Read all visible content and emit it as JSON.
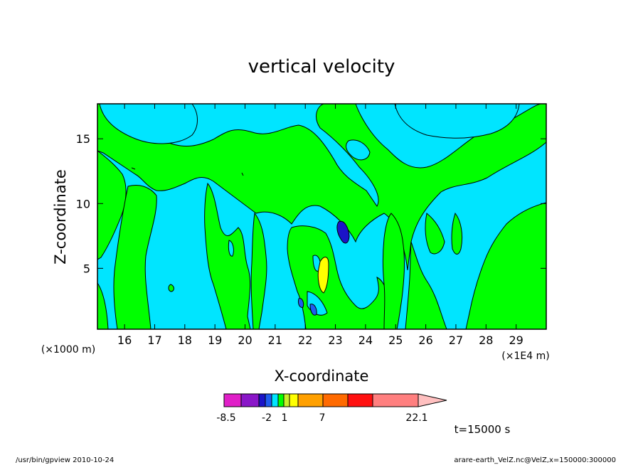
{
  "chart_data": {
    "type": "heatmap",
    "title": "vertical velocity",
    "xlabel": "X-coordinate",
    "ylabel": "Z-coordinate",
    "x_ticks": [
      "16",
      "17",
      "18",
      "19",
      "20",
      "21",
      "22",
      "23",
      "24",
      "25",
      "26",
      "27",
      "28",
      "29"
    ],
    "x_tick_values": [
      16,
      17,
      18,
      19,
      20,
      21,
      22,
      23,
      24,
      25,
      26,
      27,
      28,
      29
    ],
    "y_ticks": [
      "5",
      "10",
      "15"
    ],
    "y_tick_values": [
      5,
      10,
      15
    ],
    "xlim": [
      15.1,
      30.0
    ],
    "ylim": [
      0.3,
      17.7
    ],
    "x_unit_left": "(×1000 m)",
    "x_unit_right": "(×1E4 m)",
    "time_label": "t=15000 s",
    "colorbar": {
      "labels": [
        "-8.5",
        "-2",
        "1",
        "7",
        "22.1"
      ],
      "colors": [
        "#e01fc8",
        "#8a16c8",
        "#1b14c8",
        "#1f5cf0",
        "#00e5ff",
        "#00ff00",
        "#c7f02a",
        "#ffff00",
        "#ffa000",
        "#ff6a00",
        "#ff1010",
        "#ff7f7f",
        "#ffc0c0"
      ]
    },
    "field_colors": {
      "background": "#00e5ff",
      "positive": "#00ff00",
      "strong_positive": "#ffff00",
      "negative": "#1f5cf0",
      "strong_negative": "#1b14c8"
    }
  },
  "footer": {
    "left": "/usr/bin/gpview  2010-10-24",
    "right": "arare-earth_VelZ.nc@VelZ,x=150000:300000"
  }
}
